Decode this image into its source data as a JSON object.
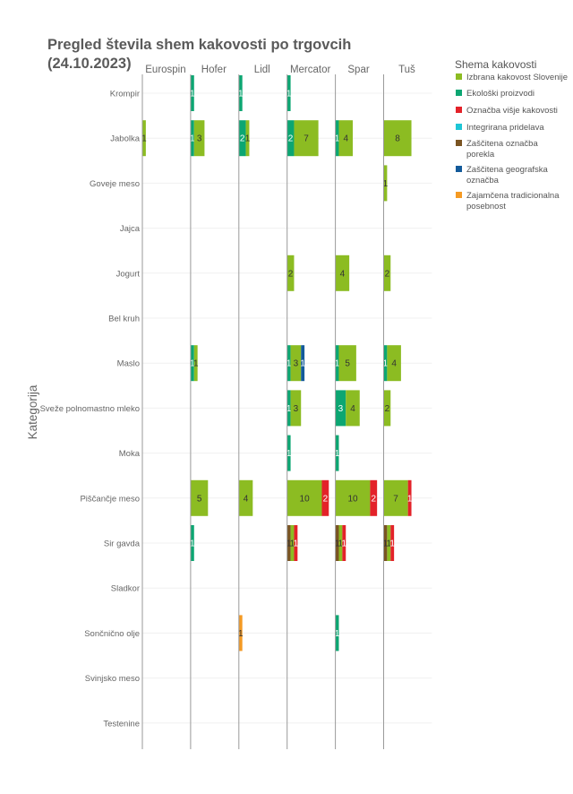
{
  "chart_data": {
    "type": "bar",
    "orientation": "horizontal",
    "layout": "small-multiples-stacked",
    "title_lines": [
      "Pregled števila shem kakovosti po trgovcih",
      "(24.10.2023)"
    ],
    "ylabel": "Kategorija",
    "legend_title": "Shema kakovosti",
    "legend_position": "right",
    "grid": true,
    "stores": [
      "Eurospin",
      "Hofer",
      "Lidl",
      "Mercator",
      "Spar",
      "Tuš"
    ],
    "categories": [
      "Krompir",
      "Jabolka",
      "Goveje meso",
      "Jajca",
      "Jogurt",
      "Bel kruh",
      "Maslo",
      "Sveže polnomastno mleko",
      "Moka",
      "Piščančje meso",
      "Sir gavda",
      "Sladkor",
      "Sončnično olje",
      "Svinjsko meso",
      "Testenine"
    ],
    "schemes": [
      {
        "name": "Izbrana kakovost Slovenije",
        "color": "#8cbc22"
      },
      {
        "name": "Ekološki proizvodi",
        "color": "#0ca672"
      },
      {
        "name": "Označba višje kakovosti",
        "color": "#e32229"
      },
      {
        "name": "Integrirana pridelava",
        "color": "#1ec6d6"
      },
      {
        "name": "Zaščitena označba porekla",
        "color": "#7a5422"
      },
      {
        "name": "Zaščitena geografska označba",
        "color": "#135a9a"
      },
      {
        "name": "Zajamčena tradicionalna posebnost",
        "color": "#f59a23"
      }
    ],
    "series": [
      {
        "name": "Izbrana kakovost Slovenije",
        "values": {
          "Eurospin": {
            "Jabolka": 1
          },
          "Hofer": {
            "Jabolka": 3,
            "Maslo": 1,
            "Piščančje meso": 5
          },
          "Lidl": {
            "Jabolka": 1,
            "Piščančje meso": 4
          },
          "Mercator": {
            "Jabolka": 7,
            "Jogurt": 2,
            "Maslo": 3,
            "Sveže polnomastno mleko": 3,
            "Piščančje meso": 10,
            "Sir gavda": 1
          },
          "Spar": {
            "Jabolka": 4,
            "Jogurt": 4,
            "Maslo": 5,
            "Sveže polnomastno mleko": 4,
            "Piščančje meso": 10,
            "Sir gavda": 1
          },
          "Tuš": {
            "Jabolka": 8,
            "Goveje meso": 1,
            "Jogurt": 2,
            "Maslo": 4,
            "Sveže polnomastno mleko": 2,
            "Piščančje meso": 7,
            "Sir gavda": 1
          }
        }
      },
      {
        "name": "Ekološki proizvodi",
        "values": {
          "Hofer": {
            "Krompir": 1,
            "Jabolka": 1,
            "Maslo": 1,
            "Sir gavda": 1
          },
          "Lidl": {
            "Krompir": 1,
            "Jabolka": 2
          },
          "Mercator": {
            "Krompir": 1,
            "Jabolka": 2,
            "Maslo": 1,
            "Sveže polnomastno mleko": 1,
            "Moka": 1
          },
          "Spar": {
            "Jabolka": 1,
            "Maslo": 1,
            "Sveže polnomastno mleko": 3,
            "Moka": 1,
            "Sončnično olje": 1
          },
          "Tuš": {
            "Maslo": 1
          }
        }
      },
      {
        "name": "Označba višje kakovosti",
        "values": {
          "Mercator": {
            "Piščančje meso": 2,
            "Sir gavda": 1
          },
          "Spar": {
            "Piščančje meso": 2,
            "Sir gavda": 1
          },
          "Tuš": {
            "Piščančje meso": 1,
            "Sir gavda": 1
          }
        }
      },
      {
        "name": "Integrirana pridelava",
        "values": {}
      },
      {
        "name": "Zaščitena označba porekla",
        "values": {
          "Mercator": {
            "Sir gavda": 1
          },
          "Spar": {
            "Sir gavda": 1
          },
          "Tuš": {
            "Sir gavda": 1
          }
        }
      },
      {
        "name": "Zaščitena geografska označba",
        "values": {
          "Mercator": {
            "Maslo": 1
          }
        }
      },
      {
        "name": "Zajamčena tradicionalna posebnost",
        "values": {
          "Lidl": {
            "Sončnično olje": 1
          }
        }
      }
    ],
    "stacks": {
      "Eurospin": {
        "Jabolka": [
          [
            "Izbrana kakovost Slovenije",
            1
          ]
        ]
      },
      "Hofer": {
        "Krompir": [
          [
            "Ekološki proizvodi",
            1
          ]
        ],
        "Jabolka": [
          [
            "Ekološki proizvodi",
            1
          ],
          [
            "Izbrana kakovost Slovenije",
            3
          ]
        ],
        "Maslo": [
          [
            "Ekološki proizvodi",
            1
          ],
          [
            "Izbrana kakovost Slovenije",
            1
          ]
        ],
        "Piščančje meso": [
          [
            "Izbrana kakovost Slovenije",
            5
          ]
        ],
        "Sir gavda": [
          [
            "Ekološki proizvodi",
            1
          ]
        ]
      },
      "Lidl": {
        "Krompir": [
          [
            "Ekološki proizvodi",
            1
          ]
        ],
        "Jabolka": [
          [
            "Ekološki proizvodi",
            2
          ],
          [
            "Izbrana kakovost Slovenije",
            1
          ]
        ],
        "Piščančje meso": [
          [
            "Izbrana kakovost Slovenije",
            4
          ]
        ],
        "Sončnično olje": [
          [
            "Zajamčena tradicionalna posebnost",
            1
          ]
        ]
      },
      "Mercator": {
        "Krompir": [
          [
            "Ekološki proizvodi",
            1
          ]
        ],
        "Jabolka": [
          [
            "Ekološki proizvodi",
            2
          ],
          [
            "Izbrana kakovost Slovenije",
            7
          ]
        ],
        "Jogurt": [
          [
            "Izbrana kakovost Slovenije",
            2
          ]
        ],
        "Maslo": [
          [
            "Ekološki proizvodi",
            1
          ],
          [
            "Izbrana kakovost Slovenije",
            3
          ],
          [
            "Zaščitena geografska označba",
            1
          ]
        ],
        "Sveže polnomastno mleko": [
          [
            "Ekološki proizvodi",
            1
          ],
          [
            "Izbrana kakovost Slovenije",
            3
          ]
        ],
        "Moka": [
          [
            "Ekološki proizvodi",
            1
          ]
        ],
        "Piščančje meso": [
          [
            "Izbrana kakovost Slovenije",
            10
          ],
          [
            "Označba višje kakovosti",
            2
          ]
        ],
        "Sir gavda": [
          [
            "Zaščitena označba porekla",
            1
          ],
          [
            "Izbrana kakovost Slovenije",
            1
          ],
          [
            "Označba višje kakovosti",
            1
          ]
        ]
      },
      "Spar": {
        "Jabolka": [
          [
            "Ekološki proizvodi",
            1
          ],
          [
            "Izbrana kakovost Slovenije",
            4
          ]
        ],
        "Jogurt": [
          [
            "Izbrana kakovost Slovenije",
            4
          ]
        ],
        "Maslo": [
          [
            "Ekološki proizvodi",
            1
          ],
          [
            "Izbrana kakovost Slovenije",
            5
          ]
        ],
        "Sveže polnomastno mleko": [
          [
            "Ekološki proizvodi",
            3
          ],
          [
            "Izbrana kakovost Slovenije",
            4
          ]
        ],
        "Moka": [
          [
            "Ekološki proizvodi",
            1
          ]
        ],
        "Piščančje meso": [
          [
            "Izbrana kakovost Slovenije",
            10
          ],
          [
            "Označba višje kakovosti",
            2
          ]
        ],
        "Sir gavda": [
          [
            "Zaščitena označba porekla",
            1
          ],
          [
            "Izbrana kakovost Slovenije",
            1
          ],
          [
            "Označba višje kakovosti",
            1
          ]
        ],
        "Sončnično olje": [
          [
            "Ekološki proizvodi",
            1
          ]
        ]
      },
      "Tuš": {
        "Jabolka": [
          [
            "Izbrana kakovost Slovenije",
            8
          ]
        ],
        "Goveje meso": [
          [
            "Izbrana kakovost Slovenije",
            1
          ]
        ],
        "Jogurt": [
          [
            "Izbrana kakovost Slovenije",
            2
          ]
        ],
        "Maslo": [
          [
            "Ekološki proizvodi",
            1
          ],
          [
            "Izbrana kakovost Slovenije",
            4
          ]
        ],
        "Sveže polnomastno mleko": [
          [
            "Izbrana kakovost Slovenije",
            2
          ]
        ],
        "Piščančje meso": [
          [
            "Izbrana kakovost Slovenije",
            7
          ],
          [
            "Označba višje kakovosti",
            1
          ]
        ],
        "Sir gavda": [
          [
            "Zaščitena označba porekla",
            1
          ],
          [
            "Izbrana kakovost Slovenije",
            1
          ],
          [
            "Označba višje kakovosti",
            1
          ]
        ]
      }
    }
  }
}
